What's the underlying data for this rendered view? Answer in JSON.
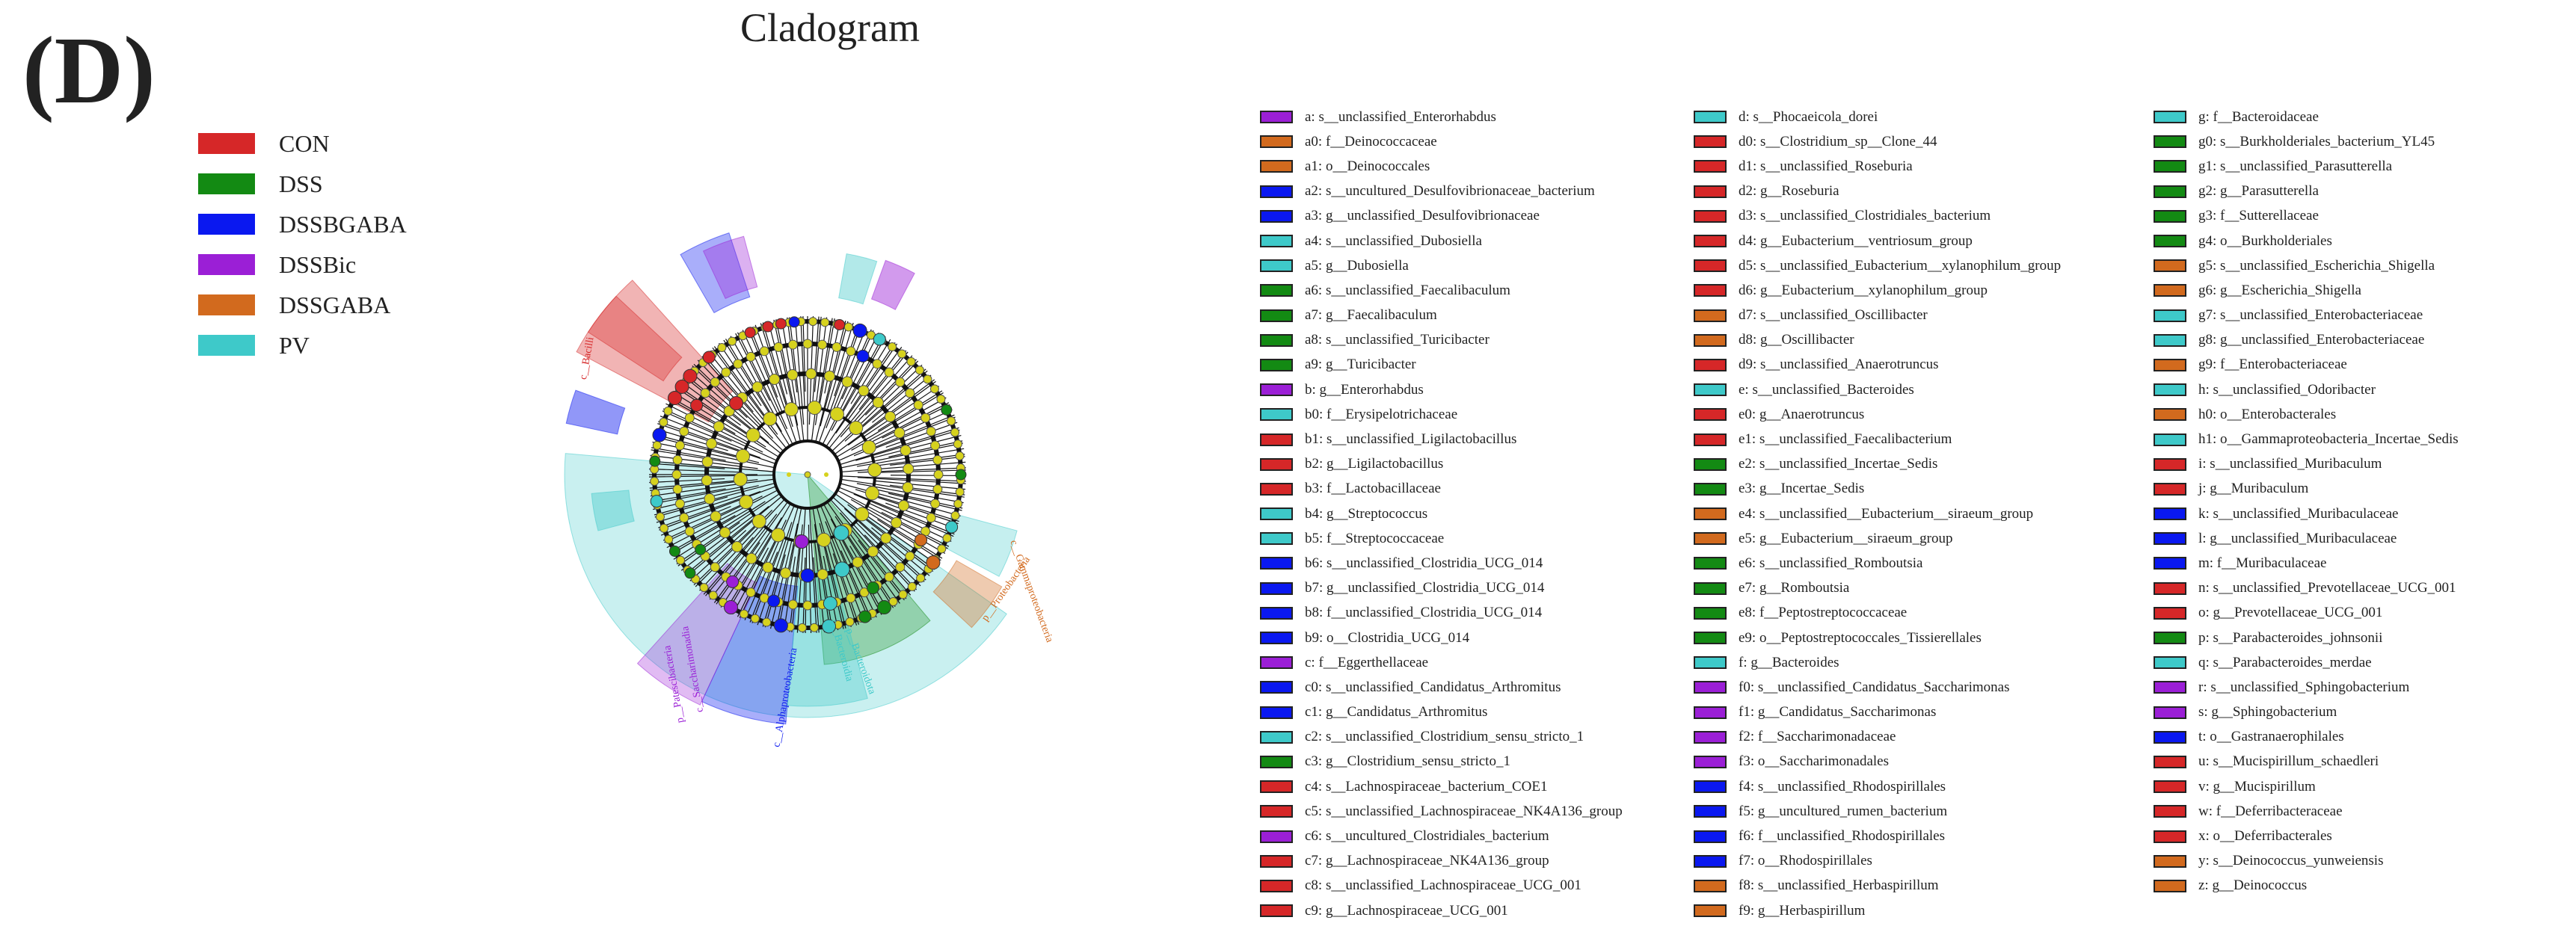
{
  "panel_label": "(D)",
  "title": "Cladogram",
  "groups": [
    {
      "name": "CON",
      "color": "#d62728"
    },
    {
      "name": "DSS",
      "color": "#138a13"
    },
    {
      "name": "DSSBGABA",
      "color": "#0a18f0"
    },
    {
      "name": "DSSBic",
      "color": "#9b1fd6"
    },
    {
      "name": "DSSGABA",
      "color": "#d26a1e"
    },
    {
      "name": "PV",
      "color": "#3ec9c9"
    }
  ],
  "sector_labels": [
    {
      "text": "c__Bacilli",
      "group": "CON"
    },
    {
      "text": "p__Proteobacteria",
      "group": "DSSGABA"
    },
    {
      "text": "c__Alphaproteobacteria",
      "group": "DSSBGABA"
    },
    {
      "text": "c__Gammaproteobacteria",
      "group": "DSSGABA"
    },
    {
      "text": "p__Patescibacteria",
      "group": "DSSBic"
    },
    {
      "text": "c__Saccharimonadia",
      "group": "DSSBic"
    },
    {
      "text": "p__Bacteroidota",
      "group": "PV"
    },
    {
      "text": "c__Bacteroidia",
      "group": "PV"
    }
  ],
  "key_items": [
    {
      "text": "a: s__unclassified_Enterorhabdus",
      "group": "DSSBic"
    },
    {
      "text": "a0: f__Deinococcaceae",
      "group": "DSSGABA"
    },
    {
      "text": "a1: o__Deinococcales",
      "group": "DSSGABA"
    },
    {
      "text": "a2: s__uncultured_Desulfovibrionaceae_bacterium",
      "group": "DSSBGABA"
    },
    {
      "text": "a3: g__unclassified_Desulfovibrionaceae",
      "group": "DSSBGABA"
    },
    {
      "text": "a4: s__unclassified_Dubosiella",
      "group": "PV"
    },
    {
      "text": "a5: g__Dubosiella",
      "group": "PV"
    },
    {
      "text": "a6: s__unclassified_Faecalibaculum",
      "group": "DSS"
    },
    {
      "text": "a7: g__Faecalibaculum",
      "group": "DSS"
    },
    {
      "text": "a8: s__unclassified_Turicibacter",
      "group": "DSS"
    },
    {
      "text": "a9: g__Turicibacter",
      "group": "DSS"
    },
    {
      "text": "b: g__Enterorhabdus",
      "group": "DSSBic"
    },
    {
      "text": "b0: f__Erysipelotrichaceae",
      "group": "PV"
    },
    {
      "text": "b1: s__unclassified_Ligilactobacillus",
      "group": "CON"
    },
    {
      "text": "b2: g__Ligilactobacillus",
      "group": "CON"
    },
    {
      "text": "b3: f__Lactobacillaceae",
      "group": "CON"
    },
    {
      "text": "b4: g__Streptococcus",
      "group": "PV"
    },
    {
      "text": "b5: f__Streptococcaceae",
      "group": "PV"
    },
    {
      "text": "b6: s__unclassified_Clostridia_UCG_014",
      "group": "DSSBGABA"
    },
    {
      "text": "b7: g__unclassified_Clostridia_UCG_014",
      "group": "DSSBGABA"
    },
    {
      "text": "b8: f__unclassified_Clostridia_UCG_014",
      "group": "DSSBGABA"
    },
    {
      "text": "b9: o__Clostridia_UCG_014",
      "group": "DSSBGABA"
    },
    {
      "text": "c: f__Eggerthellaceae",
      "group": "DSSBic"
    },
    {
      "text": "c0: s__unclassified_Candidatus_Arthromitus",
      "group": "DSSBGABA"
    },
    {
      "text": "c1: g__Candidatus_Arthromitus",
      "group": "DSSBGABA"
    },
    {
      "text": "c2: s__unclassified_Clostridium_sensu_stricto_1",
      "group": "PV"
    },
    {
      "text": "c3: g__Clostridium_sensu_stricto_1",
      "group": "DSS"
    },
    {
      "text": "c4: s__Lachnospiraceae_bacterium_COE1",
      "group": "CON"
    },
    {
      "text": "c5: s__unclassified_Lachnospiraceae_NK4A136_group",
      "group": "CON"
    },
    {
      "text": "c6: s__uncultured_Clostridiales_bacterium",
      "group": "DSSBic"
    },
    {
      "text": "c7: g__Lachnospiraceae_NK4A136_group",
      "group": "CON"
    },
    {
      "text": "c8: s__unclassified_Lachnospiraceae_UCG_001",
      "group": "CON"
    },
    {
      "text": "c9: g__Lachnospiraceae_UCG_001",
      "group": "CON"
    },
    {
      "text": "d: s__Phocaeicola_dorei",
      "group": "PV"
    },
    {
      "text": "d0: s__Clostridium_sp__Clone_44",
      "group": "CON"
    },
    {
      "text": "d1: s__unclassified_Roseburia",
      "group": "CON"
    },
    {
      "text": "d2: g__Roseburia",
      "group": "CON"
    },
    {
      "text": "d3: s__unclassified_Clostridiales_bacterium",
      "group": "CON"
    },
    {
      "text": "d4: g__Eubacterium__ventriosum_group",
      "group": "CON"
    },
    {
      "text": "d5: s__unclassified_Eubacterium__xylanophilum_group",
      "group": "CON"
    },
    {
      "text": "d6: g__Eubacterium__xylanophilum_group",
      "group": "CON"
    },
    {
      "text": "d7: s__unclassified_Oscillibacter",
      "group": "DSSGABA"
    },
    {
      "text": "d8: g__Oscillibacter",
      "group": "DSSGABA"
    },
    {
      "text": "d9: s__unclassified_Anaerotruncus",
      "group": "CON"
    },
    {
      "text": "e: s__unclassified_Bacteroides",
      "group": "PV"
    },
    {
      "text": "e0: g__Anaerotruncus",
      "group": "CON"
    },
    {
      "text": "e1: s__unclassified_Faecalibacterium",
      "group": "CON"
    },
    {
      "text": "e2: s__unclassified_Incertae_Sedis",
      "group": "DSS"
    },
    {
      "text": "e3: g__Incertae_Sedis",
      "group": "DSS"
    },
    {
      "text": "e4: s__unclassified__Eubacterium__siraeum_group",
      "group": "DSSGABA"
    },
    {
      "text": "e5: g__Eubacterium__siraeum_group",
      "group": "DSSGABA"
    },
    {
      "text": "e6: s__unclassified_Romboutsia",
      "group": "DSS"
    },
    {
      "text": "e7: g__Romboutsia",
      "group": "DSS"
    },
    {
      "text": "e8: f__Peptostreptococcaceae",
      "group": "DSS"
    },
    {
      "text": "e9: o__Peptostreptococcales_Tissierellales",
      "group": "DSS"
    },
    {
      "text": "f: g__Bacteroides",
      "group": "PV"
    },
    {
      "text": "f0: s__unclassified_Candidatus_Saccharimonas",
      "group": "DSSBic"
    },
    {
      "text": "f1: g__Candidatus_Saccharimonas",
      "group": "DSSBic"
    },
    {
      "text": "f2: f__Saccharimonadaceae",
      "group": "DSSBic"
    },
    {
      "text": "f3: o__Saccharimonadales",
      "group": "DSSBic"
    },
    {
      "text": "f4: s__unclassified_Rhodospirillales",
      "group": "DSSBGABA"
    },
    {
      "text": "f5: g__uncultured_rumen_bacterium",
      "group": "DSSBGABA"
    },
    {
      "text": "f6: f__unclassified_Rhodospirillales",
      "group": "DSSBGABA"
    },
    {
      "text": "f7: o__Rhodospirillales",
      "group": "DSSBGABA"
    },
    {
      "text": "f8: s__unclassified_Herbaspirillum",
      "group": "DSSGABA"
    },
    {
      "text": "f9: g__Herbaspirillum",
      "group": "DSSGABA"
    },
    {
      "text": "g: f__Bacteroidaceae",
      "group": "PV"
    },
    {
      "text": "g0: s__Burkholderiales_bacterium_YL45",
      "group": "DSS"
    },
    {
      "text": "g1: s__unclassified_Parasutterella",
      "group": "DSS"
    },
    {
      "text": "g2: g__Parasutterella",
      "group": "DSS"
    },
    {
      "text": "g3: f__Sutterellaceae",
      "group": "DSS"
    },
    {
      "text": "g4: o__Burkholderiales",
      "group": "DSS"
    },
    {
      "text": "g5: s__unclassified_Escherichia_Shigella",
      "group": "DSSGABA"
    },
    {
      "text": "g6: g__Escherichia_Shigella",
      "group": "DSSGABA"
    },
    {
      "text": "g7: s__unclassified_Enterobacteriaceae",
      "group": "PV"
    },
    {
      "text": "g8: g__unclassified_Enterobacteriaceae",
      "group": "PV"
    },
    {
      "text": "g9: f__Enterobacteriaceae",
      "group": "DSSGABA"
    },
    {
      "text": "h: s__unclassified_Odoribacter",
      "group": "PV"
    },
    {
      "text": "h0: o__Enterobacterales",
      "group": "DSSGABA"
    },
    {
      "text": "h1: o__Gammaproteobacteria_Incertae_Sedis",
      "group": "PV"
    },
    {
      "text": "i: s__unclassified_Muribaculum",
      "group": "CON"
    },
    {
      "text": "j: g__Muribaculum",
      "group": "CON"
    },
    {
      "text": "k: s__unclassified_Muribaculaceae",
      "group": "DSSBGABA"
    },
    {
      "text": "l: g__unclassified_Muribaculaceae",
      "group": "DSSBGABA"
    },
    {
      "text": "m: f__Muribaculaceae",
      "group": "DSSBGABA"
    },
    {
      "text": "n: s__unclassified_Prevotellaceae_UCG_001",
      "group": "CON"
    },
    {
      "text": "o: g__Prevotellaceae_UCG_001",
      "group": "CON"
    },
    {
      "text": "p: s__Parabacteroides_johnsonii",
      "group": "DSS"
    },
    {
      "text": "q: s__Parabacteroides_merdae",
      "group": "PV"
    },
    {
      "text": "r: s__unclassified_Sphingobacterium",
      "group": "DSSBic"
    },
    {
      "text": "s: g__Sphingobacterium",
      "group": "DSSBic"
    },
    {
      "text": "t: o__Gastranaerophilales",
      "group": "DSSBGABA"
    },
    {
      "text": "u: s__Mucispirillum_schaedleri",
      "group": "CON"
    },
    {
      "text": "v: g__Mucispirillum",
      "group": "CON"
    },
    {
      "text": "w: f__Deferribacteraceae",
      "group": "CON"
    },
    {
      "text": "x: o__Deferribacterales",
      "group": "CON"
    },
    {
      "text": "y: s__Deinococcus_yunweiensis",
      "group": "DSSGABA"
    },
    {
      "text": "z: g__Deinococcus",
      "group": "DSSGABA"
    }
  ]
}
